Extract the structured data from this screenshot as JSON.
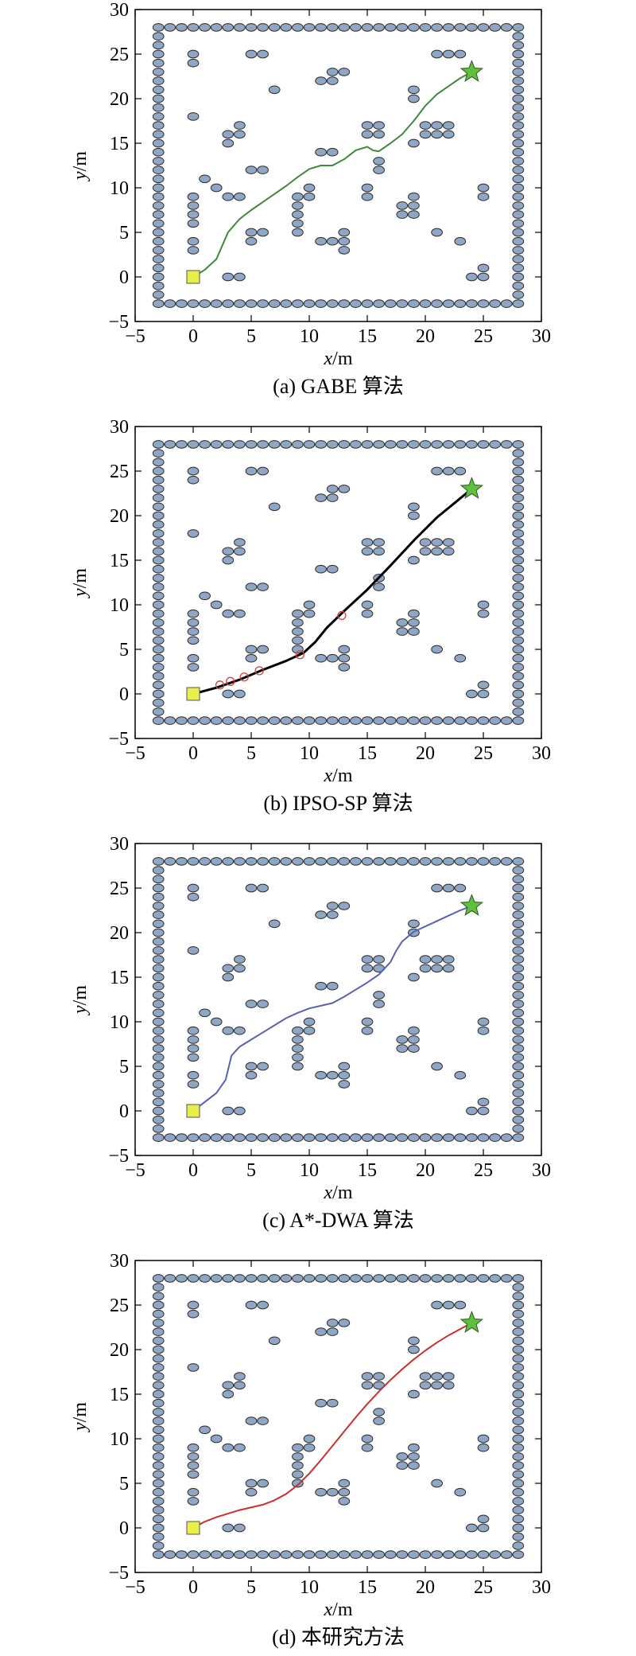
{
  "colors": {
    "obstacle_fill": "#8fa7c4",
    "obstacle_edge": "#2b2b2b",
    "start_fill": "#e8ee4a",
    "goal_fill": "#5fbf3f"
  },
  "axis_ticks": {
    "x": [
      "−5",
      "0",
      "5",
      "10",
      "15",
      "20",
      "25",
      "30"
    ],
    "y": [
      "−5",
      "0",
      "5",
      "10",
      "15",
      "20",
      "25",
      "30"
    ]
  },
  "obstacles": {
    "inner": [
      [
        0,
        25
      ],
      [
        0,
        24
      ],
      [
        5,
        25
      ],
      [
        6,
        25
      ],
      [
        7,
        21
      ],
      [
        0,
        18
      ],
      [
        3,
        16
      ],
      [
        4,
        16
      ],
      [
        4,
        17
      ],
      [
        3,
        15
      ],
      [
        1,
        11
      ],
      [
        2,
        10
      ],
      [
        3,
        9
      ],
      [
        4,
        9
      ],
      [
        0,
        9
      ],
      [
        0,
        8
      ],
      [
        0,
        7
      ],
      [
        0,
        6
      ],
      [
        0,
        4
      ],
      [
        0,
        3
      ],
      [
        3,
        0
      ],
      [
        4,
        0
      ],
      [
        5,
        12
      ],
      [
        6,
        12
      ],
      [
        5,
        5
      ],
      [
        6,
        5
      ],
      [
        5,
        4
      ],
      [
        9,
        9
      ],
      [
        10,
        9
      ],
      [
        10,
        10
      ],
      [
        9,
        8
      ],
      [
        9,
        7
      ],
      [
        9,
        6
      ],
      [
        9,
        5
      ],
      [
        11,
        14
      ],
      [
        12,
        14
      ],
      [
        11,
        4
      ],
      [
        12,
        4
      ],
      [
        13,
        5
      ],
      [
        13,
        4
      ],
      [
        13,
        3
      ],
      [
        11,
        22
      ],
      [
        12,
        22
      ],
      [
        12,
        23
      ],
      [
        13,
        23
      ],
      [
        15,
        17
      ],
      [
        16,
        17
      ],
      [
        15,
        16
      ],
      [
        16,
        16
      ],
      [
        16,
        13
      ],
      [
        16,
        12
      ],
      [
        15,
        10
      ],
      [
        15,
        9
      ],
      [
        19,
        21
      ],
      [
        19,
        20
      ],
      [
        20,
        17
      ],
      [
        21,
        17
      ],
      [
        22,
        17
      ],
      [
        20,
        16
      ],
      [
        21,
        16
      ],
      [
        22,
        16
      ],
      [
        19,
        15
      ],
      [
        19,
        9
      ],
      [
        18,
        8
      ],
      [
        19,
        8
      ],
      [
        18,
        7
      ],
      [
        19,
        7
      ],
      [
        21,
        5
      ],
      [
        23,
        4
      ],
      [
        21,
        25
      ],
      [
        22,
        25
      ],
      [
        23,
        25
      ],
      [
        25,
        10
      ],
      [
        25,
        9
      ],
      [
        24,
        0
      ],
      [
        25,
        0
      ],
      [
        25,
        1
      ]
    ],
    "wall": {
      "min": -3,
      "max": 28
    }
  },
  "chart_data": [
    {
      "type": "line",
      "title": "(a) GABE 算法",
      "xlabel_var": "x",
      "ylabel_var": "y",
      "unit": "/m",
      "xlim": [
        -5,
        30
      ],
      "ylim": [
        -5,
        30
      ],
      "start": [
        0,
        0
      ],
      "goal": [
        24,
        23
      ],
      "series": [
        {
          "color": "#3f8a3a",
          "width": 2,
          "x": [
            0,
            1,
            2,
            2.5,
            3,
            4,
            5,
            6,
            7,
            8,
            9,
            10,
            11,
            12,
            13,
            14,
            15,
            15.5,
            16,
            17,
            18,
            19,
            20,
            21,
            22,
            23,
            24
          ],
          "y": [
            0,
            0.8,
            2,
            3.5,
            5,
            6.5,
            7.5,
            8.4,
            9.3,
            10.2,
            11.2,
            12.1,
            12.5,
            12.5,
            13.2,
            14.2,
            14.6,
            14.2,
            14.1,
            15,
            16,
            17.5,
            19.2,
            20.5,
            21.4,
            22.3,
            23
          ]
        }
      ]
    },
    {
      "type": "line",
      "title": "(b) IPSO-SP 算法",
      "xlabel_var": "x",
      "ylabel_var": "y",
      "unit": "/m",
      "xlim": [
        -5,
        30
      ],
      "ylim": [
        -5,
        30
      ],
      "start": [
        0,
        0
      ],
      "goal": [
        24,
        23
      ],
      "series": [
        {
          "color": "#000000",
          "width": 3,
          "x": [
            0,
            2,
            4,
            6,
            8,
            9.5,
            10.5,
            11.5,
            13,
            15,
            17,
            19,
            21,
            22.5,
            24
          ],
          "y": [
            0,
            0.7,
            1.6,
            2.7,
            3.7,
            4.6,
            5.8,
            7.4,
            9.3,
            11.7,
            14.4,
            17.2,
            19.8,
            21.4,
            23
          ]
        }
      ],
      "markers": {
        "color": "#d04040",
        "x": [
          2.3,
          3.2,
          4.4,
          5.7,
          9.2,
          12.8
        ],
        "y": [
          1,
          1.4,
          1.9,
          2.6,
          4.4,
          8.8
        ]
      }
    },
    {
      "type": "line",
      "title": "(c) A*-DWA 算法",
      "xlabel_var": "x",
      "ylabel_var": "y",
      "unit": "/m",
      "xlim": [
        -5,
        30
      ],
      "ylim": [
        -5,
        30
      ],
      "start": [
        0,
        0
      ],
      "goal": [
        24,
        23
      ],
      "series": [
        {
          "color": "#5b5fb8",
          "width": 2,
          "x": [
            0,
            1,
            2,
            2.8,
            3.3,
            4,
            5,
            6,
            7,
            8,
            9,
            10,
            11,
            12,
            13,
            14,
            15,
            16,
            17,
            17.5,
            18,
            19,
            20,
            21,
            22,
            23,
            24
          ],
          "y": [
            0,
            1,
            2,
            3.5,
            6.2,
            7.2,
            8,
            8.8,
            9.6,
            10.4,
            11,
            11.5,
            11.8,
            12.1,
            12.8,
            13.6,
            14.4,
            15.3,
            16.7,
            18,
            19,
            20.1,
            20.7,
            21.3,
            21.9,
            22.5,
            23
          ]
        }
      ]
    },
    {
      "type": "line",
      "title": "(d) 本研究方法",
      "xlabel_var": "x",
      "ylabel_var": "y",
      "unit": "/m",
      "xlim": [
        -5,
        30
      ],
      "ylim": [
        -5,
        30
      ],
      "start": [
        0,
        0
      ],
      "goal": [
        24,
        23
      ],
      "series": [
        {
          "color": "#c93030",
          "width": 2,
          "x": [
            0,
            1,
            2,
            3,
            4,
            5,
            6,
            7,
            8,
            9,
            10,
            11,
            12,
            13,
            14,
            15,
            16,
            17,
            18,
            19,
            20,
            21,
            22,
            23,
            24
          ],
          "y": [
            0,
            0.7,
            1.2,
            1.6,
            2,
            2.3,
            2.6,
            3.1,
            3.8,
            4.8,
            6.1,
            7.6,
            9.2,
            10.8,
            12.4,
            13.9,
            15.3,
            16.6,
            17.8,
            18.9,
            19.9,
            20.8,
            21.6,
            22.3,
            23
          ]
        }
      ]
    }
  ]
}
